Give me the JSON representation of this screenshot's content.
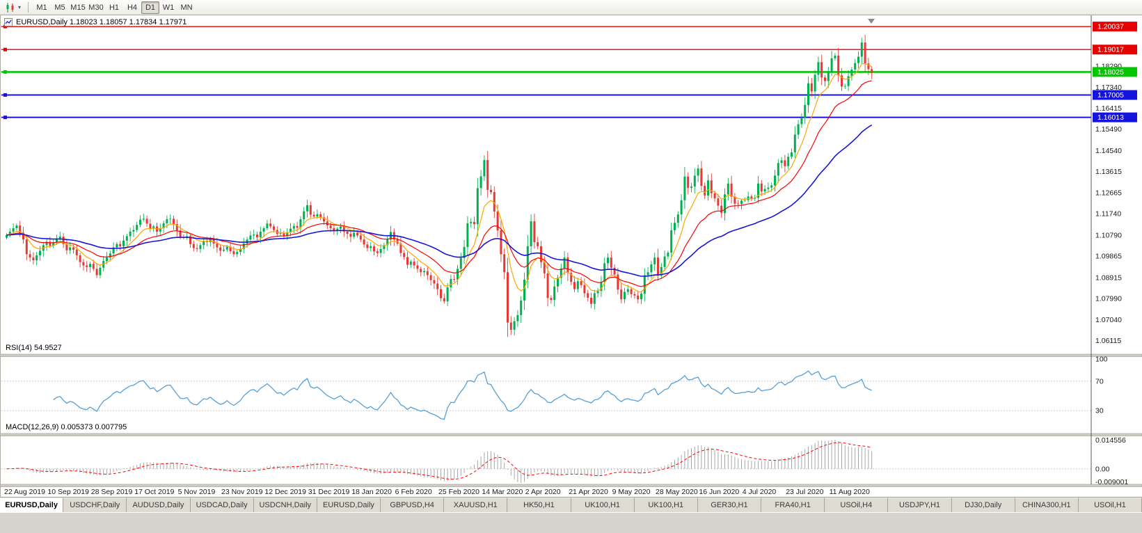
{
  "toolbar": {
    "chart_type_icon": "candlestick-chart-icon",
    "timeframes": [
      {
        "label": "M1",
        "active": false
      },
      {
        "label": "M5",
        "active": false
      },
      {
        "label": "M15",
        "active": false
      },
      {
        "label": "M30",
        "active": false
      },
      {
        "label": "H1",
        "active": false
      },
      {
        "label": "H4",
        "active": false
      },
      {
        "label": "D1",
        "active": true
      },
      {
        "label": "W1",
        "active": false
      },
      {
        "label": "MN",
        "active": false
      }
    ]
  },
  "chart": {
    "title": "EURUSD,Daily 1.18023 1.18057 1.17834 1.17971"
  },
  "rsi_panel": {
    "label": "RSI(14) 54.9527"
  },
  "macd_panel": {
    "label": "MACD(12,26,9) 0.005373 0.007795"
  },
  "chart_data": {
    "type": "candlestick",
    "symbol": "EURUSD",
    "timeframe": "Daily",
    "ohlc_quote": {
      "open": 1.18023,
      "high": 1.18057,
      "low": 1.17834,
      "close": 1.17971
    },
    "x_labels": [
      "22 Aug 2019",
      "10 Sep 2019",
      "28 Sep 2019",
      "17 Oct 2019",
      "5 Nov 2019",
      "23 Nov 2019",
      "12 Dec 2019",
      "31 Dec 2019",
      "18 Jan 2020",
      "6 Feb 2020",
      "25 Feb 2020",
      "14 Mar 2020",
      "2 Apr 2020",
      "21 Apr 2020",
      "9 May 2020",
      "28 May 2020",
      "16 Jun 2020",
      "4 Jul 2020",
      "23 Jul 2020",
      "11 Aug 2020"
    ],
    "x_label_every": 13,
    "y_axis": {
      "max": 1.2035,
      "min": 1.0555,
      "ticks": [
        "1.18290",
        "1.17340",
        "1.16415",
        "1.15490",
        "1.14540",
        "1.13615",
        "1.12665",
        "1.11740",
        "1.10790",
        "1.09865",
        "1.08915",
        "1.07990",
        "1.07040",
        "1.06115"
      ]
    },
    "closes": [
      1.108,
      1.1095,
      1.111,
      1.1122,
      1.109,
      1.106,
      1.0995,
      1.098,
      1.0968,
      1.099,
      1.101,
      1.1035,
      1.105,
      1.1032,
      1.1048,
      1.1065,
      1.1073,
      1.104,
      1.1012,
      1.1025,
      1.1015,
      1.099,
      1.096,
      1.0945,
      1.0938,
      1.0952,
      1.093,
      1.0902,
      1.0935,
      1.0965,
      1.098,
      1.0998,
      1.1025,
      1.104,
      1.103,
      1.1055,
      1.1075,
      1.1095,
      1.1102,
      1.1125,
      1.1148,
      1.1152,
      1.113,
      1.1108,
      1.1118,
      1.1095,
      1.111,
      1.1132,
      1.115,
      1.1152,
      1.1128,
      1.11,
      1.1072,
      1.1068,
      1.1075,
      1.104,
      1.1022,
      1.1018,
      1.1035,
      1.1052,
      1.1048,
      1.106,
      1.1042,
      1.1025,
      1.101,
      1.1015,
      1.1028,
      1.1008,
      1.0995,
      1.1005,
      1.1018,
      1.1042,
      1.106,
      1.1078,
      1.1082,
      1.107,
      1.1095,
      1.111,
      1.1131,
      1.1118,
      1.1102,
      1.1085,
      1.1088,
      1.1075,
      1.1092,
      1.1108,
      1.112,
      1.1112,
      1.115,
      1.1185,
      1.1212,
      1.117,
      1.1162,
      1.1172,
      1.1158,
      1.114,
      1.1122,
      1.111,
      1.1098,
      1.1108,
      1.1118,
      1.1095,
      1.1085,
      1.1072,
      1.109,
      1.1078,
      1.106,
      1.1038,
      1.1022,
      1.103,
      1.1008,
      1.1,
      1.1018,
      1.1035,
      1.106,
      1.1093,
      1.106,
      1.1042,
      1.1,
      1.0982,
      1.0948,
      1.0962,
      1.0945,
      1.093,
      1.0915,
      1.092,
      1.0902,
      1.088,
      1.0865,
      1.084,
      1.08,
      1.0786,
      1.0848,
      1.0885,
      1.0882,
      1.093,
      1.0978,
      1.1027,
      1.1132,
      1.1138,
      1.1128,
      1.1288,
      1.134,
      1.1412,
      1.128,
      1.127,
      1.1184,
      1.11,
      1.0995,
      1.0915,
      1.0692,
      1.066,
      1.0698,
      1.0725,
      1.079,
      1.0882,
      1.103,
      1.1141,
      1.1048,
      1.103,
      1.096,
      1.091,
      1.0801,
      1.0792,
      1.0852,
      1.089,
      1.0932,
      1.098,
      1.0912,
      1.0872,
      1.084,
      1.0875,
      1.0858,
      1.0822,
      1.0802,
      1.0775,
      1.0822,
      1.0832,
      1.0872,
      1.0955,
      1.098,
      1.0935,
      1.0905,
      1.0838,
      1.0795,
      1.0828,
      1.084,
      1.0818,
      1.0812,
      1.0795,
      1.082,
      1.0902,
      1.0915,
      1.095,
      1.098,
      1.09,
      1.0938,
      1.0985,
      1.1002,
      1.1101,
      1.1134,
      1.1171,
      1.1234,
      1.1339,
      1.1289,
      1.1295,
      1.1343,
      1.1375,
      1.1298,
      1.1255,
      1.1322,
      1.1265,
      1.1242,
      1.121,
      1.1177,
      1.126,
      1.1308,
      1.125,
      1.1219,
      1.1218,
      1.1232,
      1.1234,
      1.1251,
      1.124,
      1.1245,
      1.1308,
      1.1273,
      1.1284,
      1.129,
      1.13,
      1.1343,
      1.1399,
      1.1411,
      1.1385,
      1.1427,
      1.1446,
      1.1525,
      1.1571,
      1.1598,
      1.1656,
      1.1752,
      1.1716,
      1.179,
      1.1846,
      1.1778,
      1.1762,
      1.1803,
      1.1863,
      1.1875,
      1.1787,
      1.1738,
      1.174,
      1.1784,
      1.1813,
      1.1842,
      1.187,
      1.1933,
      1.184,
      1.1815,
      1.1797
    ],
    "moving_averages": [
      {
        "period": 8,
        "color": "#ffa500",
        "name": "fast-ma"
      },
      {
        "period": 20,
        "color": "#ff0000",
        "name": "medium-ma"
      },
      {
        "period": 50,
        "color": "#1616d8",
        "name": "slow-ma"
      }
    ],
    "hlines": [
      {
        "price": 1.20037,
        "label": "1.20037",
        "color": "#e60000",
        "width": 1.4
      },
      {
        "price": 1.19017,
        "label": "1.19017",
        "color": "#e60000",
        "width": 1.4
      },
      {
        "price": 1.18025,
        "label": "1.18025",
        "color": "#00c800",
        "width": 2.6
      },
      {
        "price": 1.17005,
        "label": "1.17005",
        "color": "#1414dc",
        "width": 2
      },
      {
        "price": 1.16013,
        "label": "1.16013",
        "color": "#1414dc",
        "width": 2
      }
    ],
    "candle_colors": {
      "up": "#00b050",
      "down": "#e53935"
    },
    "rsi": {
      "period": 14,
      "value": "54.9527",
      "color": "#55a0d8",
      "levels": [
        100,
        70,
        30
      ],
      "level_lines": [
        70,
        30
      ],
      "range": [
        0,
        100
      ]
    },
    "macd": {
      "fast": 12,
      "slow": 26,
      "signal": 9,
      "values": "0.005373 0.007795",
      "hist_color": "#a6a6a6",
      "signal_color": "#ff0000",
      "axis_labels": [
        "0.014556",
        "0.00",
        "-0.009001"
      ],
      "range": [
        -0.009001,
        0.014556
      ]
    }
  },
  "tabs": [
    {
      "label": "EURUSD,Daily",
      "active": true
    },
    {
      "label": "USDCHF,Daily"
    },
    {
      "label": "AUDUSD,Daily"
    },
    {
      "label": "USDCAD,Daily"
    },
    {
      "label": "USDCNH,Daily"
    },
    {
      "label": "EURUSD,Daily"
    },
    {
      "label": "GBPUSD,H4"
    },
    {
      "label": "XAUUSD,H1"
    },
    {
      "label": "HK50,H1"
    },
    {
      "label": "UK100,H1"
    },
    {
      "label": "UK100,H1"
    },
    {
      "label": "GER30,H1"
    },
    {
      "label": "FRA40,H1"
    },
    {
      "label": "USOil,H4"
    },
    {
      "label": "USDJPY,H1"
    },
    {
      "label": "DJ30,Daily"
    },
    {
      "label": "CHINA300,H1"
    },
    {
      "label": "USOil,H1"
    }
  ]
}
